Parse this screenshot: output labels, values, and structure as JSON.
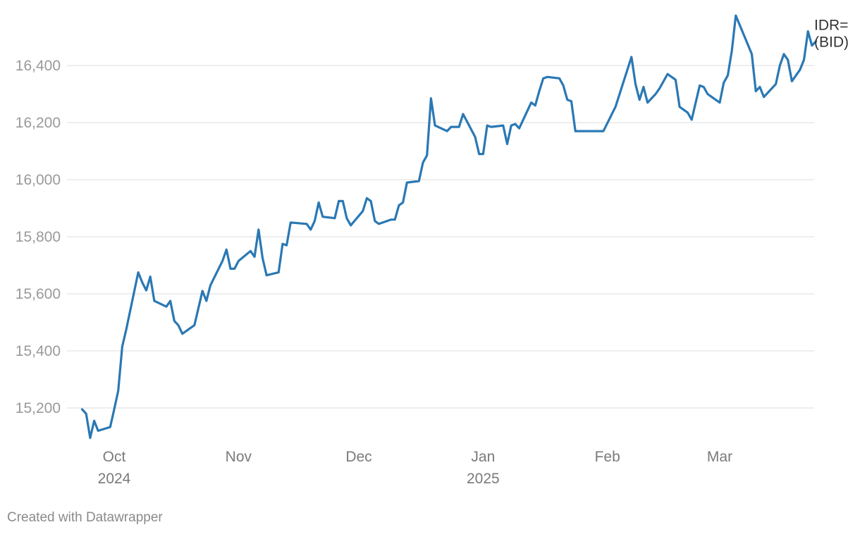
{
  "chart_data": {
    "type": "line",
    "title": "",
    "xlabel": "",
    "ylabel": "",
    "x_range": [
      "2024-09-23",
      "2025-03-21"
    ],
    "ylim": [
      15100,
      16600
    ],
    "grid": true,
    "colors": {
      "line": "#2a78b4",
      "grid": "#dddddd",
      "tick_text": "#9a9a9a"
    },
    "y_ticks": [
      {
        "value": 15200,
        "label": "15,200"
      },
      {
        "value": 15400,
        "label": "15,400"
      },
      {
        "value": 15600,
        "label": "15,600"
      },
      {
        "value": 15800,
        "label": "15,800"
      },
      {
        "value": 16000,
        "label": "16,000"
      },
      {
        "value": 16200,
        "label": "16,200"
      },
      {
        "value": 16400,
        "label": "16,400"
      }
    ],
    "x_ticks": [
      {
        "date": "2024-10-01",
        "label": "Oct",
        "year": "2024"
      },
      {
        "date": "2024-11-01",
        "label": "Nov",
        "year": ""
      },
      {
        "date": "2024-12-01",
        "label": "Dec",
        "year": ""
      },
      {
        "date": "2025-01-01",
        "label": "Jan",
        "year": "2025"
      },
      {
        "date": "2025-02-01",
        "label": "Feb",
        "year": ""
      },
      {
        "date": "2025-03-01",
        "label": "Mar",
        "year": ""
      }
    ],
    "series": [
      {
        "name": "IDR= (BID)",
        "label_lines": [
          "IDR=",
          "(BID)"
        ],
        "points": [
          [
            "2024-09-23",
            15195
          ],
          [
            "2024-09-24",
            15180
          ],
          [
            "2024-09-25",
            15095
          ],
          [
            "2024-09-26",
            15155
          ],
          [
            "2024-09-27",
            15120
          ],
          [
            "2024-09-30",
            15133
          ],
          [
            "2024-10-01",
            15195
          ],
          [
            "2024-10-02",
            15260
          ],
          [
            "2024-10-03",
            15415
          ],
          [
            "2024-10-04",
            15475
          ],
          [
            "2024-10-07",
            15675
          ],
          [
            "2024-10-08",
            15640
          ],
          [
            "2024-10-09",
            15612
          ],
          [
            "2024-10-10",
            15660
          ],
          [
            "2024-10-11",
            15575
          ],
          [
            "2024-10-14",
            15555
          ],
          [
            "2024-10-15",
            15575
          ],
          [
            "2024-10-16",
            15505
          ],
          [
            "2024-10-17",
            15490
          ],
          [
            "2024-10-18",
            15460
          ],
          [
            "2024-10-21",
            15490
          ],
          [
            "2024-10-22",
            15550
          ],
          [
            "2024-10-23",
            15610
          ],
          [
            "2024-10-24",
            15575
          ],
          [
            "2024-10-25",
            15630
          ],
          [
            "2024-10-28",
            15715
          ],
          [
            "2024-10-29",
            15755
          ],
          [
            "2024-10-30",
            15688
          ],
          [
            "2024-10-31",
            15688
          ],
          [
            "2024-11-01",
            15715
          ],
          [
            "2024-11-04",
            15750
          ],
          [
            "2024-11-05",
            15730
          ],
          [
            "2024-11-06",
            15825
          ],
          [
            "2024-11-07",
            15725
          ],
          [
            "2024-11-08",
            15665
          ],
          [
            "2024-11-11",
            15675
          ],
          [
            "2024-11-12",
            15775
          ],
          [
            "2024-11-13",
            15770
          ],
          [
            "2024-11-14",
            15850
          ],
          [
            "2024-11-18",
            15845
          ],
          [
            "2024-11-19",
            15825
          ],
          [
            "2024-11-20",
            15855
          ],
          [
            "2024-11-21",
            15920
          ],
          [
            "2024-11-22",
            15870
          ],
          [
            "2024-11-25",
            15865
          ],
          [
            "2024-11-26",
            15925
          ],
          [
            "2024-11-27",
            15925
          ],
          [
            "2024-11-28",
            15865
          ],
          [
            "2024-11-29",
            15840
          ],
          [
            "2024-12-02",
            15890
          ],
          [
            "2024-12-03",
            15935
          ],
          [
            "2024-12-04",
            15925
          ],
          [
            "2024-12-05",
            15855
          ],
          [
            "2024-12-06",
            15845
          ],
          [
            "2024-12-09",
            15860
          ],
          [
            "2024-12-10",
            15860
          ],
          [
            "2024-12-11",
            15910
          ],
          [
            "2024-12-12",
            15920
          ],
          [
            "2024-12-13",
            15990
          ],
          [
            "2024-12-16",
            15995
          ],
          [
            "2024-12-17",
            16060
          ],
          [
            "2024-12-18",
            16085
          ],
          [
            "2024-12-19",
            16285
          ],
          [
            "2024-12-20",
            16190
          ],
          [
            "2024-12-23",
            16170
          ],
          [
            "2024-12-24",
            16185
          ],
          [
            "2024-12-26",
            16185
          ],
          [
            "2024-12-27",
            16230
          ],
          [
            "2024-12-30",
            16150
          ],
          [
            "2024-12-31",
            16090
          ],
          [
            "2025-01-01",
            16090
          ],
          [
            "2025-01-02",
            16190
          ],
          [
            "2025-01-03",
            16185
          ],
          [
            "2025-01-06",
            16190
          ],
          [
            "2025-01-07",
            16125
          ],
          [
            "2025-01-08",
            16190
          ],
          [
            "2025-01-09",
            16195
          ],
          [
            "2025-01-10",
            16180
          ],
          [
            "2025-01-13",
            16270
          ],
          [
            "2025-01-14",
            16260
          ],
          [
            "2025-01-15",
            16310
          ],
          [
            "2025-01-16",
            16355
          ],
          [
            "2025-01-17",
            16360
          ],
          [
            "2025-01-20",
            16355
          ],
          [
            "2025-01-21",
            16330
          ],
          [
            "2025-01-22",
            16280
          ],
          [
            "2025-01-23",
            16275
          ],
          [
            "2025-01-24",
            16170
          ],
          [
            "2025-01-31",
            16170
          ],
          [
            "2025-02-03",
            16255
          ],
          [
            "2025-02-07",
            16430
          ],
          [
            "2025-02-08",
            16335
          ],
          [
            "2025-02-09",
            16280
          ],
          [
            "2025-02-10",
            16325
          ],
          [
            "2025-02-11",
            16270
          ],
          [
            "2025-02-13",
            16300
          ],
          [
            "2025-02-14",
            16320
          ],
          [
            "2025-02-16",
            16370
          ],
          [
            "2025-02-18",
            16350
          ],
          [
            "2025-02-19",
            16255
          ],
          [
            "2025-02-21",
            16235
          ],
          [
            "2025-02-22",
            16210
          ],
          [
            "2025-02-24",
            16330
          ],
          [
            "2025-02-25",
            16325
          ],
          [
            "2025-02-26",
            16300
          ],
          [
            "2025-02-27",
            16290
          ],
          [
            "2025-03-01",
            16270
          ],
          [
            "2025-03-02",
            16340
          ],
          [
            "2025-03-03",
            16365
          ],
          [
            "2025-03-04",
            16450
          ],
          [
            "2025-03-05",
            16575
          ],
          [
            "2025-03-09",
            16440
          ],
          [
            "2025-03-10",
            16310
          ],
          [
            "2025-03-11",
            16325
          ],
          [
            "2025-03-12",
            16290
          ],
          [
            "2025-03-14",
            16320
          ],
          [
            "2025-03-15",
            16335
          ],
          [
            "2025-03-16",
            16400
          ],
          [
            "2025-03-17",
            16440
          ],
          [
            "2025-03-18",
            16420
          ],
          [
            "2025-03-19",
            16345
          ],
          [
            "2025-03-21",
            16385
          ],
          [
            "2025-03-22",
            16420
          ],
          [
            "2025-03-23",
            16520
          ],
          [
            "2025-03-24",
            16470
          ],
          [
            "2025-03-25",
            16485
          ]
        ]
      }
    ]
  },
  "footer": {
    "credit": "Created with Datawrapper"
  }
}
